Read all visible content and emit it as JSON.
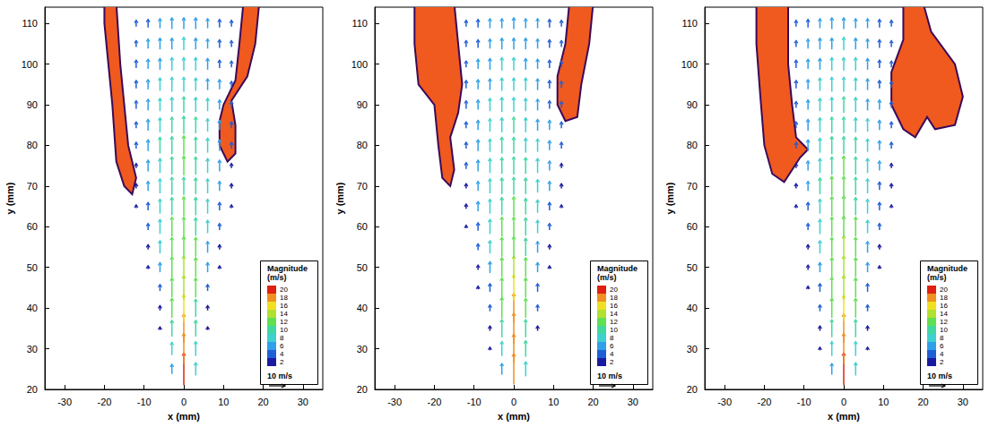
{
  "chart_data": [
    {
      "type": "vector",
      "xlabel": "x (mm)",
      "ylabel": "y (mm)",
      "xlim": [
        -35,
        35
      ],
      "ylim": [
        20,
        114
      ],
      "xticks": [
        -30,
        -20,
        -10,
        0,
        10,
        20,
        30
      ],
      "yticks": [
        20,
        30,
        40,
        50,
        60,
        70,
        80,
        90,
        100,
        110
      ],
      "x": [
        -12,
        -9,
        -6,
        -3,
        0,
        3,
        6,
        9,
        12
      ],
      "y": [
        25,
        30,
        35,
        40,
        45,
        50,
        55,
        60,
        65,
        70,
        75,
        80,
        85,
        90,
        95,
        100,
        105,
        110
      ],
      "magnitude": [
        [
          null,
          null,
          null,
          6,
          20,
          8,
          null,
          null,
          null
        ],
        [
          null,
          null,
          null,
          8,
          19,
          9,
          null,
          null,
          null
        ],
        [
          null,
          null,
          2,
          10,
          18,
          10,
          2,
          null,
          null
        ],
        [
          null,
          null,
          3,
          12,
          17,
          11,
          3,
          null,
          null
        ],
        [
          null,
          null,
          4,
          12,
          15,
          12,
          4,
          null,
          null
        ],
        [
          null,
          2,
          6,
          13,
          14,
          12,
          6,
          2,
          null
        ],
        [
          null,
          3,
          8,
          12,
          13,
          12,
          7,
          3,
          null
        ],
        [
          null,
          4,
          9,
          12,
          12,
          11,
          8,
          4,
          null
        ],
        [
          2,
          5,
          9,
          11,
          12,
          11,
          9,
          5,
          2
        ],
        [
          3,
          6,
          9,
          11,
          11,
          10,
          9,
          6,
          3
        ],
        [
          3,
          7,
          9,
          11,
          12,
          11,
          9,
          7,
          3
        ],
        [
          4,
          7,
          10,
          11,
          12,
          10,
          9,
          7,
          4
        ],
        [
          4,
          7,
          9,
          10,
          11,
          10,
          8,
          6,
          4
        ],
        [
          5,
          7,
          8,
          9,
          10,
          9,
          8,
          6,
          4
        ],
        [
          5,
          6,
          8,
          9,
          9,
          8,
          7,
          6,
          4
        ],
        [
          5,
          6,
          7,
          8,
          8,
          8,
          7,
          5,
          4
        ],
        [
          4,
          6,
          7,
          7,
          8,
          7,
          6,
          5,
          4
        ],
        [
          4,
          5,
          6,
          7,
          7,
          7,
          6,
          5,
          4
        ]
      ],
      "flames": [
        {
          "color": "#f05a1e",
          "points": [
            [
              -20,
              115
            ],
            [
              -17,
              115
            ],
            [
              -16,
              100
            ],
            [
              -15,
              90
            ],
            [
              -14,
              80
            ],
            [
              -12,
              72
            ],
            [
              -13,
              68
            ],
            [
              -15,
              70
            ],
            [
              -17,
              76
            ],
            [
              -18,
              90
            ],
            [
              -19,
              100
            ],
            [
              -20,
              110
            ]
          ]
        },
        {
          "color": "#f05a1e",
          "points": [
            [
              15,
              115
            ],
            [
              19,
              115
            ],
            [
              18,
              105
            ],
            [
              16,
              97
            ],
            [
              12,
              91
            ],
            [
              13,
              85
            ],
            [
              13,
              78
            ],
            [
              11,
              76
            ],
            [
              9,
              80
            ],
            [
              9,
              86
            ],
            [
              10,
              90
            ],
            [
              13,
              96
            ],
            [
              14,
              105
            ]
          ]
        }
      ],
      "colorbar": {
        "title": "Magnitude (m/s)",
        "levels": [
          2,
          4,
          6,
          8,
          10,
          12,
          14,
          16,
          18,
          20
        ],
        "colors": [
          "#1a1aa0",
          "#1f5fd6",
          "#30a0e8",
          "#40d0d0",
          "#40d8a0",
          "#60e050",
          "#b0e030",
          "#f0e020",
          "#f09020",
          "#e02010"
        ]
      },
      "reference_vector": {
        "value": 10,
        "label": "10 m/s"
      }
    },
    {
      "type": "vector",
      "xlabel": "x (mm)",
      "ylabel": "y (mm)",
      "xlim": [
        -35,
        35
      ],
      "ylim": [
        20,
        114
      ],
      "xticks": [
        -30,
        -20,
        -10,
        0,
        10,
        20,
        30
      ],
      "yticks": [
        20,
        30,
        40,
        50,
        60,
        70,
        80,
        90,
        100,
        110
      ],
      "x": [
        -12,
        -9,
        -6,
        -3,
        0,
        3,
        6,
        9,
        12
      ],
      "y": [
        25,
        30,
        35,
        40,
        45,
        50,
        55,
        60,
        65,
        70,
        75,
        80,
        85,
        90,
        95,
        100,
        105,
        110
      ],
      "magnitude": [
        [
          null,
          null,
          null,
          7,
          19,
          9,
          null,
          null,
          null
        ],
        [
          null,
          null,
          2,
          9,
          18,
          10,
          null,
          null,
          null
        ],
        [
          null,
          null,
          3,
          11,
          19,
          11,
          3,
          null,
          null
        ],
        [
          null,
          null,
          4,
          13,
          18,
          12,
          4,
          null,
          null
        ],
        [
          null,
          2,
          5,
          12,
          16,
          12,
          5,
          null,
          null
        ],
        [
          null,
          3,
          7,
          12,
          14,
          12,
          6,
          2,
          null
        ],
        [
          null,
          4,
          8,
          12,
          13,
          11,
          7,
          3,
          null
        ],
        [
          2,
          5,
          9,
          12,
          12,
          11,
          8,
          4,
          null
        ],
        [
          3,
          6,
          9,
          11,
          12,
          10,
          8,
          5,
          2
        ],
        [
          3,
          6,
          9,
          10,
          11,
          10,
          8,
          6,
          3
        ],
        [
          4,
          7,
          9,
          10,
          11,
          10,
          9,
          6,
          3
        ],
        [
          4,
          7,
          8,
          10,
          10,
          9,
          8,
          6,
          4
        ],
        [
          4,
          6,
          8,
          9,
          10,
          9,
          7,
          6,
          4
        ],
        [
          5,
          6,
          8,
          9,
          9,
          8,
          7,
          5,
          4
        ],
        [
          5,
          6,
          7,
          8,
          8,
          8,
          7,
          5,
          4
        ],
        [
          4,
          6,
          7,
          8,
          8,
          7,
          6,
          5,
          4
        ],
        [
          4,
          5,
          6,
          7,
          7,
          7,
          6,
          5,
          4
        ],
        [
          4,
          5,
          6,
          6,
          7,
          6,
          6,
          5,
          4
        ]
      ],
      "flames": [
        {
          "color": "#f05a1e",
          "points": [
            [
              -25,
              115
            ],
            [
              -15,
              115
            ],
            [
              -14,
              105
            ],
            [
              -13,
              95
            ],
            [
              -14,
              88
            ],
            [
              -16,
              82
            ],
            [
              -15,
              74
            ],
            [
              -16,
              70
            ],
            [
              -18,
              72
            ],
            [
              -19,
              80
            ],
            [
              -20,
              90
            ],
            [
              -24,
              95
            ],
            [
              -25,
              105
            ]
          ]
        },
        {
          "color": "#f05a1e",
          "points": [
            [
              14,
              115
            ],
            [
              20,
              115
            ],
            [
              19,
              105
            ],
            [
              17,
              95
            ],
            [
              16,
              87
            ],
            [
              13,
              86
            ],
            [
              11,
              90
            ],
            [
              11,
              97
            ],
            [
              13,
              105
            ]
          ]
        }
      ],
      "colorbar": {
        "title": "Magnitude (m/s)",
        "levels": [
          2,
          4,
          6,
          8,
          10,
          12,
          14,
          16,
          18,
          20
        ],
        "colors": [
          "#1a1aa0",
          "#1f5fd6",
          "#30a0e8",
          "#40d0d0",
          "#40d8a0",
          "#60e050",
          "#b0e030",
          "#f0e020",
          "#f09020",
          "#e02010"
        ]
      },
      "reference_vector": {
        "value": 10,
        "label": "10 m/s"
      }
    },
    {
      "type": "vector",
      "xlabel": "x (mm)",
      "ylabel": "y (mm)",
      "xlim": [
        -35,
        35
      ],
      "ylim": [
        20,
        114
      ],
      "xticks": [
        -30,
        -20,
        -10,
        0,
        10,
        20,
        30
      ],
      "yticks": [
        20,
        30,
        40,
        50,
        60,
        70,
        80,
        90,
        100,
        110
      ],
      "x": [
        -12,
        -9,
        -6,
        -3,
        0,
        3,
        6,
        9,
        12
      ],
      "y": [
        25,
        30,
        35,
        40,
        45,
        50,
        55,
        60,
        65,
        70,
        75,
        80,
        85,
        90,
        95,
        100,
        105,
        110
      ],
      "magnitude": [
        [
          null,
          null,
          null,
          7,
          20,
          8,
          null,
          null,
          null
        ],
        [
          null,
          null,
          2,
          9,
          19,
          9,
          2,
          null,
          null
        ],
        [
          null,
          null,
          3,
          11,
          18,
          11,
          3,
          null,
          null
        ],
        [
          null,
          null,
          4,
          12,
          16,
          12,
          4,
          null,
          null
        ],
        [
          null,
          2,
          5,
          13,
          15,
          12,
          5,
          null,
          null
        ],
        [
          null,
          3,
          6,
          12,
          14,
          12,
          6,
          2,
          null
        ],
        [
          null,
          3,
          8,
          12,
          14,
          12,
          7,
          3,
          null
        ],
        [
          null,
          4,
          9,
          12,
          13,
          12,
          8,
          4,
          null
        ],
        [
          2,
          5,
          9,
          12,
          13,
          11,
          9,
          5,
          2
        ],
        [
          3,
          6,
          10,
          12,
          12,
          11,
          9,
          5,
          3
        ],
        [
          3,
          6,
          9,
          11,
          12,
          11,
          9,
          6,
          3
        ],
        [
          4,
          7,
          9,
          11,
          11,
          10,
          8,
          6,
          4
        ],
        [
          4,
          7,
          9,
          10,
          10,
          9,
          8,
          6,
          4
        ],
        [
          4,
          6,
          8,
          9,
          10,
          9,
          7,
          6,
          4
        ],
        [
          5,
          6,
          8,
          9,
          9,
          8,
          7,
          5,
          4
        ],
        [
          5,
          6,
          7,
          8,
          8,
          8,
          7,
          5,
          4
        ],
        [
          4,
          6,
          7,
          7,
          8,
          7,
          6,
          5,
          4
        ],
        [
          4,
          5,
          6,
          7,
          7,
          6,
          6,
          5,
          4
        ]
      ],
      "flames": [
        {
          "color": "#f05a1e",
          "points": [
            [
              -22,
              115
            ],
            [
              -14,
              115
            ],
            [
              -14,
              100
            ],
            [
              -13,
              90
            ],
            [
              -12,
              82
            ],
            [
              -9,
              79
            ],
            [
              -11,
              77
            ],
            [
              -15,
              71
            ],
            [
              -18,
              73
            ],
            [
              -20,
              80
            ],
            [
              -21,
              92
            ],
            [
              -22,
              105
            ]
          ]
        },
        {
          "color": "#f05a1e",
          "points": [
            [
              15,
              115
            ],
            [
              20,
              115
            ],
            [
              22,
              108
            ],
            [
              28,
              100
            ],
            [
              30,
              92
            ],
            [
              28,
              85
            ],
            [
              23,
              84
            ],
            [
              21,
              87
            ],
            [
              18,
              82
            ],
            [
              15,
              84
            ],
            [
              12,
              90
            ],
            [
              12,
              98
            ],
            [
              15,
              106
            ]
          ]
        }
      ],
      "colorbar": {
        "title": "Magnitude (m/s)",
        "levels": [
          2,
          4,
          6,
          8,
          10,
          12,
          14,
          16,
          18,
          20
        ],
        "colors": [
          "#1a1aa0",
          "#1f5fd6",
          "#30a0e8",
          "#40d0d0",
          "#40d8a0",
          "#60e050",
          "#b0e030",
          "#f0e020",
          "#f09020",
          "#e02010"
        ]
      },
      "reference_vector": {
        "value": 10,
        "label": "10 m/s"
      }
    }
  ]
}
